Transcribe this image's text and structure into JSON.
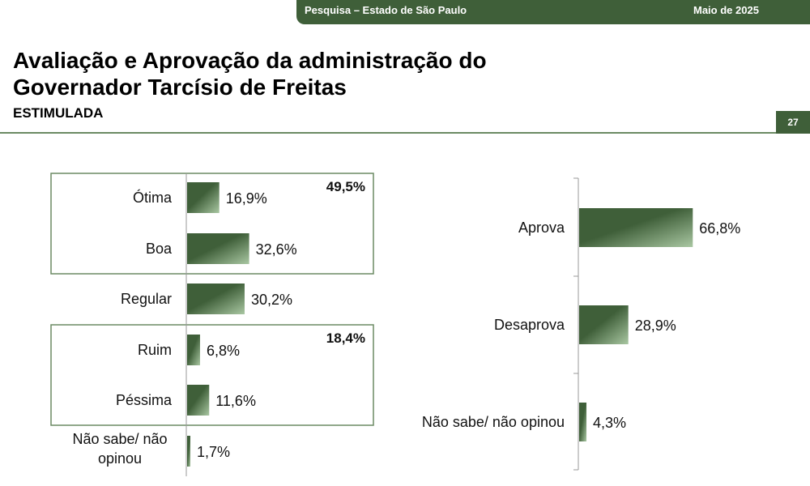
{
  "header": {
    "survey": "Pesquisa – Estado de São Paulo",
    "date": "Maio de 2025"
  },
  "title": "Avaliação e Aprovação da administração do Governador Tarcísio de Freitas",
  "subtitle": "ESTIMULADA",
  "page_number": "27",
  "colors": {
    "bar_dark": "#3f5f39",
    "bar_light": "#a9c7a2",
    "frame": "#6b8a63"
  },
  "chart_data": [
    {
      "type": "bar",
      "orientation": "horizontal",
      "categories": [
        "Ótima",
        "Boa",
        "Regular",
        "Ruim",
        "Péssima",
        "Não sabe/ não opinou"
      ],
      "values": [
        16.9,
        32.6,
        30.2,
        6.8,
        11.6,
        1.7
      ],
      "value_labels": [
        "16,9%",
        "32,6%",
        "30,2%",
        "6,8%",
        "11,6%",
        "1,7%"
      ],
      "groups": [
        {
          "label": "49,5%",
          "categories": [
            "Ótima",
            "Boa"
          ]
        },
        {
          "label": "18,4%",
          "categories": [
            "Ruim",
            "Péssima"
          ]
        }
      ]
    },
    {
      "type": "bar",
      "orientation": "horizontal",
      "categories": [
        "Aprova",
        "Desaprova",
        "Não sabe/ não opinou"
      ],
      "values": [
        66.8,
        28.9,
        4.3
      ],
      "value_labels": [
        "66,8%",
        "28,9%",
        "4,3%"
      ]
    }
  ]
}
